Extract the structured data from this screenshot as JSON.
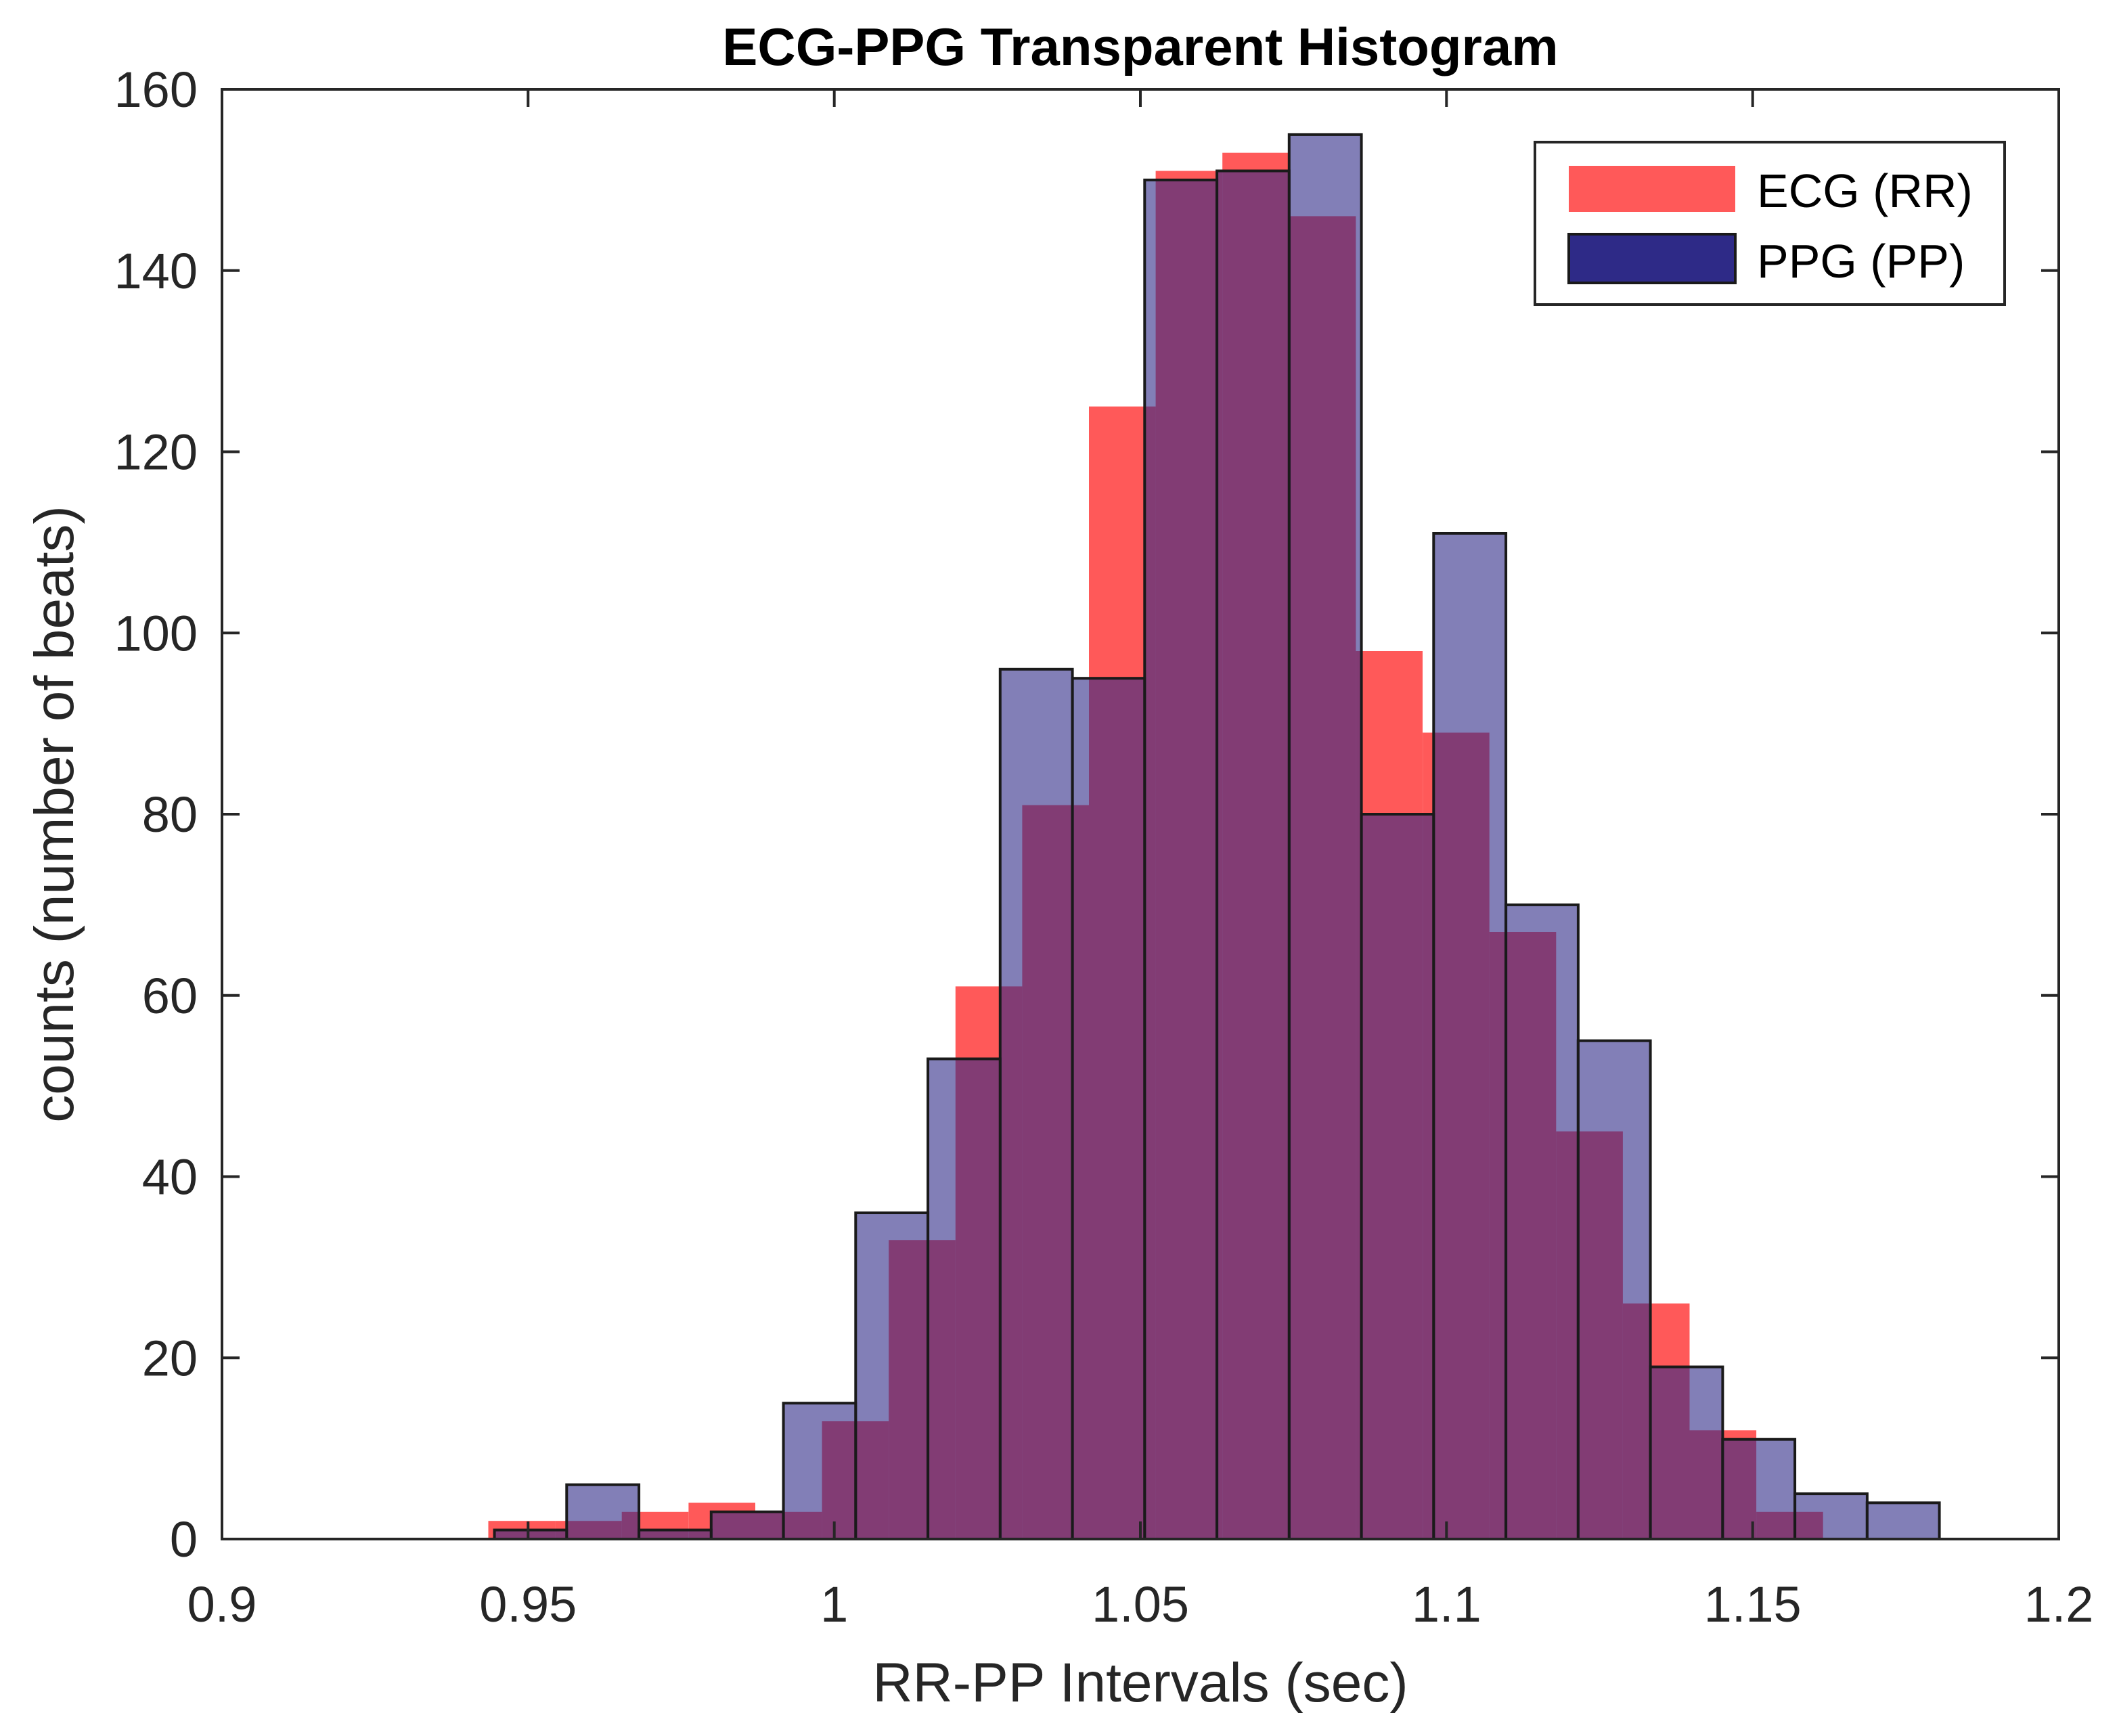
{
  "chart_data": {
    "type": "bar",
    "subtype": "overlapping-histogram",
    "title": "ECG-PPG Transparent Histogram",
    "xlabel": "RR-PP Intervals (sec)",
    "ylabel": "counts (number of beats)",
    "xlim": [
      0.9,
      1.2
    ],
    "ylim": [
      0,
      160
    ],
    "xticks": [
      0.9,
      0.95,
      1,
      1.05,
      1.1,
      1.15,
      1.2
    ],
    "xtick_labels": [
      "0.9",
      "0.95",
      "1",
      "1.05",
      "1.1",
      "1.15",
      "1.2"
    ],
    "yticks": [
      0,
      20,
      40,
      60,
      80,
      100,
      120,
      140,
      160
    ],
    "ytick_labels": [
      "0",
      "20",
      "40",
      "60",
      "80",
      "100",
      "120",
      "140",
      "160"
    ],
    "grid": false,
    "legend_position": "top-right",
    "series": [
      {
        "name": "ECG (RR)",
        "color": "#ff0000",
        "opacity": 0.65,
        "edge": "none",
        "bin_width": 0.0109,
        "bin_starts": [
          0.9435,
          0.9544,
          0.9653,
          0.9762,
          0.9871,
          0.998,
          1.0089,
          1.0198,
          1.0307,
          1.0416,
          1.0525,
          1.0634,
          1.0743,
          1.0852,
          1.0961,
          1.107,
          1.1179,
          1.1288,
          1.1397,
          1.1506,
          1.1615
        ],
        "values": [
          2,
          2,
          3,
          4,
          3,
          13,
          33,
          61,
          81,
          125,
          151,
          153,
          146,
          98,
          89,
          67,
          45,
          26,
          12,
          3,
          0
        ]
      },
      {
        "name": "PPG (PP)",
        "color": "#2e2a87",
        "opacity": 0.6,
        "edge": "#1a1a1a",
        "bin_width": 0.0118,
        "bin_starts": [
          0.9445,
          0.9563,
          0.9681,
          0.9799,
          0.9917,
          1.0035,
          1.0153,
          1.0271,
          1.0389,
          1.0507,
          1.0625,
          1.0743,
          1.0861,
          1.0979,
          1.1097,
          1.1215,
          1.1333,
          1.1451,
          1.1569,
          1.1687
        ],
        "values": [
          1,
          6,
          1,
          3,
          15,
          36,
          53,
          96,
          95,
          150,
          151,
          155,
          80,
          111,
          70,
          55,
          19,
          11,
          5,
          4
        ]
      }
    ]
  }
}
